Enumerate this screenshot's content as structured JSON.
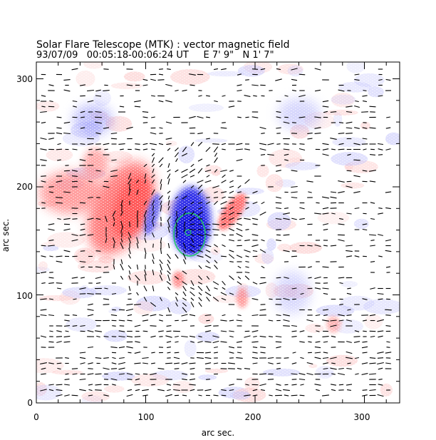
{
  "header": {
    "title": "Solar Flare Telescope (MTK) : vector magnetic field",
    "subtitle": "93/07/09   00:05:18-00:06:24 UT     E 7' 9\"   N 1' 7\""
  },
  "axes": {
    "xlabel": "arc sec.",
    "ylabel": "arc sec.",
    "x_ticks": [
      "0",
      "100",
      "200",
      "300"
    ],
    "y_ticks": [
      "0",
      "100",
      "200",
      "300"
    ]
  },
  "image": {
    "description_free": true,
    "positive_color": "#ff6666",
    "negative_color": "#3333ee",
    "contour_color": "#22cc66",
    "vector_color": "#000000"
  }
}
